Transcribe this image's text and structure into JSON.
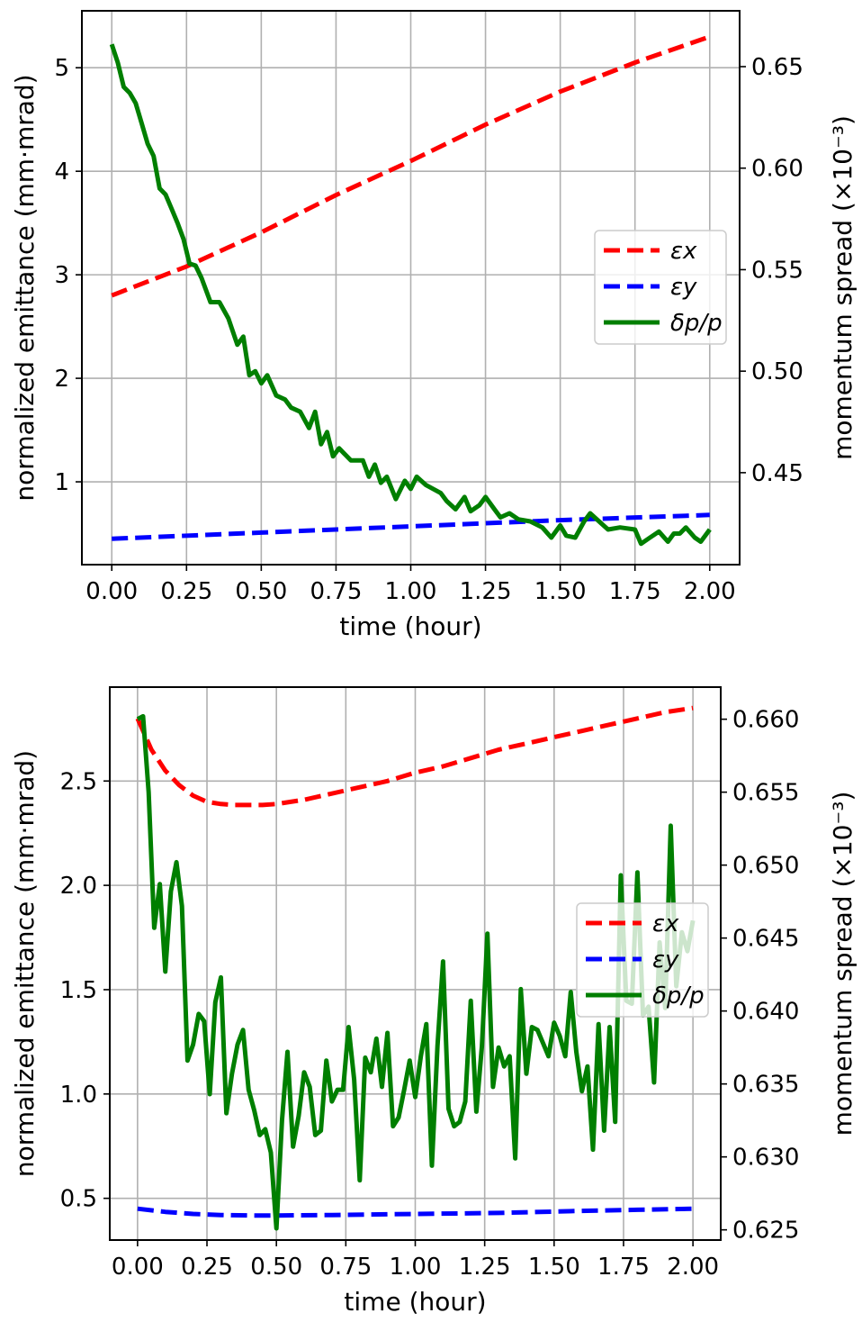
{
  "colors": {
    "ex": "#ff0000",
    "ey": "#0000ff",
    "dp": "#007f00",
    "grid": "#b0b0b0"
  },
  "chart_data": [
    {
      "type": "line",
      "xlabel": "time (hour)",
      "ylabel": "normalized emittance (mm·mrad)",
      "y2label": "momentum spread (×10⁻³)",
      "xlim": [
        -0.1,
        2.1
      ],
      "ylim": [
        0.2,
        5.55
      ],
      "y2lim": [
        0.4047,
        0.6775
      ],
      "xticks": [
        "0.00",
        "0.25",
        "0.50",
        "0.75",
        "1.00",
        "1.25",
        "1.50",
        "1.75",
        "2.00"
      ],
      "yticks": [
        "1",
        "2",
        "3",
        "4",
        "5"
      ],
      "y2ticks": [
        "0.45",
        "0.50",
        "0.55",
        "0.60",
        "0.65"
      ],
      "grid": true,
      "legend": {
        "position": "center-right",
        "entries": [
          "εx",
          "εy",
          "δp/p"
        ]
      },
      "series": [
        {
          "name": "εx",
          "axis": "left",
          "style": "dashed",
          "x": [
            0,
            0.25,
            0.5,
            0.75,
            1.0,
            1.25,
            1.5,
            1.75,
            2.0
          ],
          "y": [
            2.8,
            3.08,
            3.41,
            3.77,
            4.1,
            4.45,
            4.77,
            5.05,
            5.3
          ]
        },
        {
          "name": "εy",
          "axis": "left",
          "style": "dashed",
          "x": [
            0,
            0.5,
            1.0,
            1.5,
            2.0
          ],
          "y": [
            0.45,
            0.51,
            0.57,
            0.63,
            0.68
          ]
        },
        {
          "name": "δp/p",
          "axis": "right",
          "style": "solid",
          "x": [
            0,
            0.02,
            0.04,
            0.06,
            0.08,
            0.1,
            0.12,
            0.14,
            0.16,
            0.18,
            0.2,
            0.22,
            0.24,
            0.26,
            0.28,
            0.3,
            0.33,
            0.36,
            0.39,
            0.42,
            0.44,
            0.46,
            0.48,
            0.5,
            0.52,
            0.55,
            0.58,
            0.6,
            0.63,
            0.66,
            0.68,
            0.7,
            0.72,
            0.74,
            0.76,
            0.8,
            0.84,
            0.86,
            0.88,
            0.9,
            0.92,
            0.95,
            0.98,
            1.0,
            1.02,
            1.05,
            1.1,
            1.12,
            1.15,
            1.18,
            1.2,
            1.23,
            1.25,
            1.28,
            1.3,
            1.33,
            1.36,
            1.4,
            1.44,
            1.47,
            1.5,
            1.52,
            1.55,
            1.58,
            1.6,
            1.63,
            1.66,
            1.7,
            1.75,
            1.77,
            1.8,
            1.83,
            1.86,
            1.88,
            1.9,
            1.92,
            1.95,
            1.97,
            2.0
          ],
          "y": [
            0.661,
            0.652,
            0.64,
            0.637,
            0.632,
            0.622,
            0.612,
            0.606,
            0.59,
            0.587,
            0.58,
            0.573,
            0.565,
            0.553,
            0.552,
            0.546,
            0.534,
            0.534,
            0.526,
            0.513,
            0.517,
            0.498,
            0.5,
            0.494,
            0.498,
            0.488,
            0.486,
            0.482,
            0.48,
            0.472,
            0.48,
            0.464,
            0.47,
            0.458,
            0.462,
            0.456,
            0.456,
            0.448,
            0.454,
            0.445,
            0.448,
            0.437,
            0.446,
            0.442,
            0.448,
            0.444,
            0.44,
            0.436,
            0.432,
            0.438,
            0.431,
            0.434,
            0.438,
            0.432,
            0.428,
            0.43,
            0.427,
            0.426,
            0.423,
            0.418,
            0.424,
            0.419,
            0.418,
            0.426,
            0.43,
            0.426,
            0.422,
            0.423,
            0.422,
            0.415,
            0.418,
            0.421,
            0.416,
            0.42,
            0.42,
            0.423,
            0.418,
            0.416,
            0.422
          ]
        }
      ]
    },
    {
      "type": "line",
      "xlabel": "time (hour)",
      "ylabel": "normalized emittance (mm·mrad)",
      "y2label": "momentum spread (×10⁻³)",
      "xlim": [
        -0.1,
        2.1
      ],
      "ylim": [
        0.3,
        2.95
      ],
      "y2lim": [
        0.6243,
        0.6622
      ],
      "xticks": [
        "0.00",
        "0.25",
        "0.50",
        "0.75",
        "1.00",
        "1.25",
        "1.50",
        "1.75",
        "2.00"
      ],
      "yticks": [
        "0.5",
        "1.0",
        "1.5",
        "2.0",
        "2.5"
      ],
      "y2ticks": [
        "0.625",
        "0.630",
        "0.635",
        "0.640",
        "0.645",
        "0.650",
        "0.655",
        "0.660"
      ],
      "grid": true,
      "legend": {
        "position": "center-right",
        "entries": [
          "εx",
          "εy",
          "δp/p"
        ]
      },
      "series": [
        {
          "name": "εx",
          "axis": "left",
          "style": "dashed",
          "x": [
            0,
            0.05,
            0.1,
            0.15,
            0.2,
            0.25,
            0.3,
            0.35,
            0.4,
            0.45,
            0.5,
            0.6,
            0.7,
            0.8,
            0.9,
            1.0,
            1.1,
            1.2,
            1.3,
            1.4,
            1.5,
            1.6,
            1.7,
            1.8,
            1.9,
            2.0
          ],
          "y": [
            2.8,
            2.65,
            2.55,
            2.48,
            2.43,
            2.4,
            2.39,
            2.385,
            2.385,
            2.385,
            2.39,
            2.41,
            2.44,
            2.47,
            2.5,
            2.54,
            2.57,
            2.61,
            2.65,
            2.68,
            2.71,
            2.74,
            2.77,
            2.8,
            2.83,
            2.85
          ]
        },
        {
          "name": "εy",
          "axis": "left",
          "style": "dashed",
          "x": [
            0,
            0.1,
            0.2,
            0.3,
            0.4,
            0.5,
            0.7,
            1.0,
            1.3,
            1.6,
            1.8,
            2.0
          ],
          "y": [
            0.45,
            0.435,
            0.425,
            0.42,
            0.418,
            0.418,
            0.42,
            0.425,
            0.43,
            0.44,
            0.445,
            0.45
          ]
        },
        {
          "name": "δp/p",
          "axis": "right",
          "style": "solid",
          "x": [
            0,
            0.02,
            0.04,
            0.06,
            0.08,
            0.1,
            0.12,
            0.14,
            0.16,
            0.18,
            0.2,
            0.22,
            0.24,
            0.26,
            0.28,
            0.3,
            0.32,
            0.34,
            0.36,
            0.38,
            0.4,
            0.42,
            0.44,
            0.46,
            0.48,
            0.5,
            0.52,
            0.54,
            0.56,
            0.58,
            0.6,
            0.62,
            0.64,
            0.66,
            0.68,
            0.7,
            0.72,
            0.74,
            0.76,
            0.78,
            0.8,
            0.82,
            0.84,
            0.86,
            0.88,
            0.9,
            0.92,
            0.94,
            0.96,
            0.98,
            1.0,
            1.02,
            1.04,
            1.06,
            1.08,
            1.1,
            1.12,
            1.14,
            1.16,
            1.18,
            1.2,
            1.22,
            1.24,
            1.26,
            1.28,
            1.3,
            1.32,
            1.34,
            1.36,
            1.38,
            1.4,
            1.42,
            1.44,
            1.46,
            1.48,
            1.5,
            1.52,
            1.54,
            1.56,
            1.58,
            1.6,
            1.62,
            1.64,
            1.66,
            1.68,
            1.7,
            1.72,
            1.74,
            1.76,
            1.78,
            1.8,
            1.82,
            1.84,
            1.86,
            1.88,
            1.9,
            1.92,
            1.94,
            1.96,
            1.98,
            2.0
          ],
          "y": [
            0.66,
            0.6602,
            0.655,
            0.6457,
            0.6487,
            0.6427,
            0.6482,
            0.6502,
            0.6472,
            0.6366,
            0.6377,
            0.6398,
            0.6393,
            0.6343,
            0.6406,
            0.6423,
            0.633,
            0.6357,
            0.6377,
            0.6387,
            0.6346,
            0.6332,
            0.6315,
            0.6319,
            0.6303,
            0.6251,
            0.6325,
            0.6372,
            0.6307,
            0.6328,
            0.6358,
            0.6348,
            0.6315,
            0.6318,
            0.6366,
            0.6338,
            0.6346,
            0.6346,
            0.6389,
            0.6353,
            0.6284,
            0.6368,
            0.6358,
            0.6381,
            0.6348,
            0.6385,
            0.6321,
            0.6327,
            0.6346,
            0.6366,
            0.6341,
            0.6369,
            0.6391,
            0.6294,
            0.6376,
            0.6434,
            0.6333,
            0.6321,
            0.6324,
            0.6338,
            0.6407,
            0.6331,
            0.6376,
            0.6453,
            0.6348,
            0.6375,
            0.6362,
            0.6369,
            0.6299,
            0.6415,
            0.6357,
            0.6389,
            0.6387,
            0.6378,
            0.6369,
            0.6392,
            0.6383,
            0.6369,
            0.6413,
            0.6372,
            0.6345,
            0.6362,
            0.6305,
            0.6391,
            0.6318,
            0.6389,
            0.6324,
            0.6493,
            0.6407,
            0.6405,
            0.6495,
            0.6397,
            0.6403,
            0.6351,
            0.6447,
            0.6402,
            0.6527,
            0.6417,
            0.6454,
            0.6441,
            0.6462
          ]
        }
      ]
    }
  ]
}
